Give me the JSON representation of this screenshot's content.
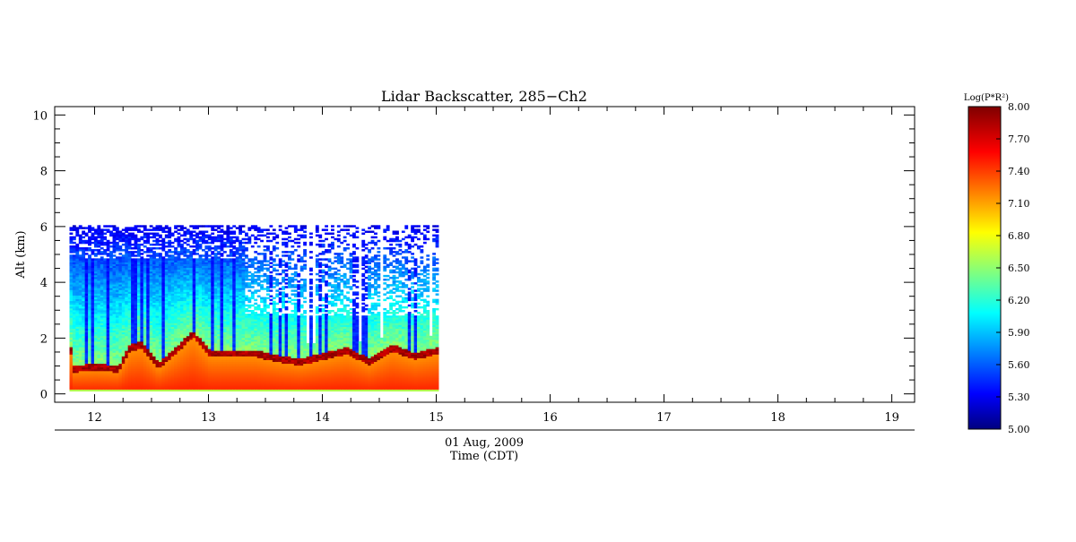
{
  "chart_data": {
    "type": "heatmap",
    "title": "Lidar Backscatter, 285−Ch2",
    "xlabel_date": "01 Aug, 2009",
    "xlabel": "Time (CDT)",
    "ylabel": "Alt (km)",
    "x_ticks": [
      "12",
      "13",
      "14",
      "15",
      "16",
      "17",
      "18",
      "19"
    ],
    "y_ticks": [
      "0",
      "2",
      "4",
      "6",
      "8",
      "10"
    ],
    "xlim": [
      11.65,
      19.2
    ],
    "ylim": [
      -0.3,
      10.3
    ],
    "data_time_range": [
      11.78,
      15.02
    ],
    "data_alt_range": [
      0.1,
      6.05
    ],
    "colorbar": {
      "label": "Log(P*R²)",
      "range": [
        5.0,
        8.0
      ],
      "ticks": [
        "8.00",
        "7.70",
        "7.40",
        "7.10",
        "6.80",
        "6.50",
        "6.20",
        "5.90",
        "5.60",
        "5.30",
        "5.00"
      ],
      "colormap": "jet"
    },
    "grid": false,
    "profiles": [
      {
        "t": 11.8,
        "pbl": 0.85,
        "clear": false
      },
      {
        "t": 12.0,
        "pbl": 0.9,
        "clear": false
      },
      {
        "t": 12.2,
        "pbl": 0.85,
        "clear": false
      },
      {
        "t": 12.3,
        "pbl": 1.6,
        "clear": false
      },
      {
        "t": 12.4,
        "pbl": 1.7,
        "clear": false
      },
      {
        "t": 12.55,
        "pbl": 0.95,
        "clear": true
      },
      {
        "t": 12.7,
        "pbl": 1.5,
        "clear": false
      },
      {
        "t": 12.85,
        "pbl": 2.1,
        "clear": false
      },
      {
        "t": 13.0,
        "pbl": 1.4,
        "clear": false
      },
      {
        "t": 13.2,
        "pbl": 1.4,
        "clear": false
      },
      {
        "t": 13.4,
        "pbl": 1.4,
        "clear": false
      },
      {
        "t": 13.6,
        "pbl": 1.2,
        "clear": false
      },
      {
        "t": 13.8,
        "pbl": 1.1,
        "clear": false
      },
      {
        "t": 14.0,
        "pbl": 1.3,
        "clear": false
      },
      {
        "t": 14.2,
        "pbl": 1.5,
        "clear": false
      },
      {
        "t": 14.4,
        "pbl": 1.1,
        "clear": false
      },
      {
        "t": 14.6,
        "pbl": 1.6,
        "clear": false
      },
      {
        "t": 14.8,
        "pbl": 1.3,
        "clear": false
      },
      {
        "t": 15.0,
        "pbl": 1.5,
        "clear": false
      }
    ]
  }
}
